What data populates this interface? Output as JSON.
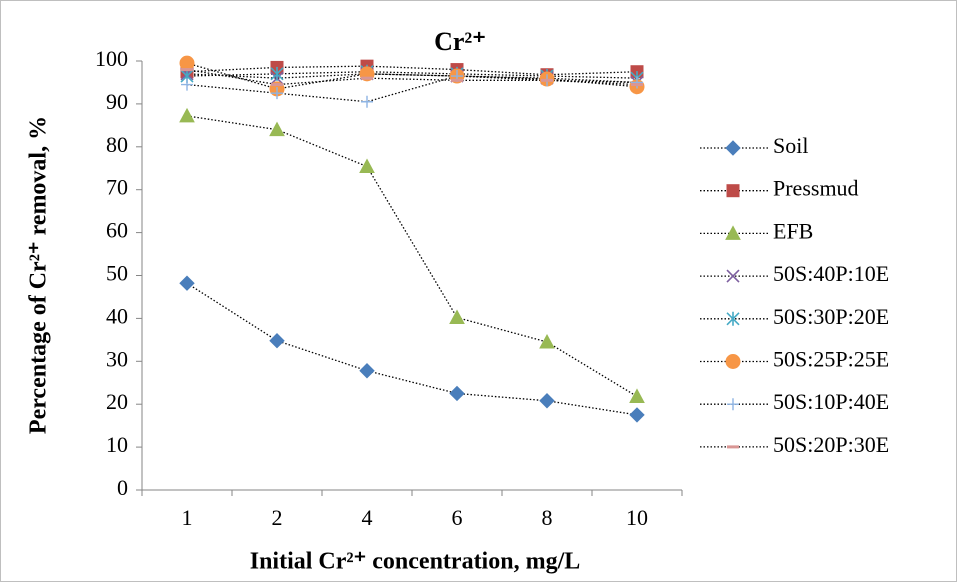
{
  "chart_data": {
    "type": "line",
    "title": "Cr²⁺",
    "x_label": "Initial Cr²⁺ concentration, mg/L",
    "y_label": "Percentage of Cr²⁺ removal, %",
    "categories": [
      "1",
      "2",
      "4",
      "6",
      "8",
      "10"
    ],
    "ylim": [
      0,
      100
    ],
    "yticks": [
      0,
      10,
      20,
      30,
      40,
      50,
      60,
      70,
      80,
      90,
      100
    ],
    "grid": false,
    "legend": "right",
    "line_color": "#000000",
    "series": [
      {
        "name": "Soil",
        "color": "#4a7ebb",
        "marker": "diamond",
        "values": [
          48.2,
          34.8,
          27.8,
          22.5,
          20.8,
          17.5
        ]
      },
      {
        "name": "Pressmud",
        "color": "#be4b48",
        "marker": "square",
        "values": [
          97.5,
          98.5,
          98.8,
          98,
          96.8,
          97.5
        ]
      },
      {
        "name": "EFB",
        "color": "#98b954",
        "marker": "triangle",
        "values": [
          87.2,
          84,
          75.4,
          40.2,
          34.5,
          21.8
        ]
      },
      {
        "name": "50S:40P:10E",
        "color": "#7d5fa0",
        "marker": "x",
        "values": [
          97,
          96,
          97,
          96.5,
          96,
          95
        ]
      },
      {
        "name": "50S:30P:20E",
        "color": "#46aac5",
        "marker": "star",
        "values": [
          96.5,
          97,
          97.5,
          97,
          96.5,
          96
        ]
      },
      {
        "name": "50S:25P:25E",
        "color": "#f79646",
        "marker": "circle",
        "values": [
          99.5,
          93.5,
          97,
          96.5,
          95.8,
          94
        ]
      },
      {
        "name": "50S:10P:40E",
        "color": "#8eb4e3",
        "marker": "plus",
        "values": [
          94.5,
          92.5,
          90.5,
          96.5,
          95.5,
          95
        ]
      },
      {
        "name": "50S:20P:30E",
        "color": "#d99694",
        "marker": "dash",
        "values": [
          98,
          94.5,
          96,
          95.5,
          95.5,
          94.5
        ]
      }
    ]
  }
}
